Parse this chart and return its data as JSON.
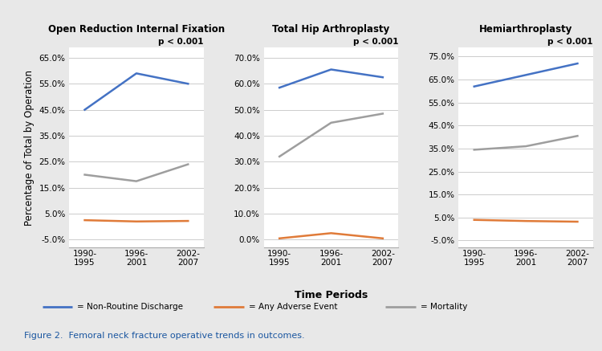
{
  "subplots": [
    {
      "title": "Open Reduction Internal Fixation",
      "pvalue": "p < 0.001",
      "yticks": [
        -5.0,
        5.0,
        15.0,
        25.0,
        35.0,
        45.0,
        55.0,
        65.0
      ],
      "ylim": [
        -8.0,
        69.0
      ],
      "non_routine": [
        45.0,
        59.0,
        55.0
      ],
      "adverse": [
        2.5,
        2.0,
        2.2
      ],
      "mortality": [
        20.0,
        17.5,
        24.0
      ]
    },
    {
      "title": "Total Hip Arthroplasty",
      "pvalue": "p < 0.001",
      "yticks": [
        0.0,
        10.0,
        20.0,
        30.0,
        40.0,
        50.0,
        60.0,
        70.0
      ],
      "ylim": [
        -3.0,
        74.0
      ],
      "non_routine": [
        58.5,
        65.5,
        62.5
      ],
      "adverse": [
        0.5,
        2.5,
        0.5
      ],
      "mortality": [
        32.0,
        45.0,
        48.5
      ]
    },
    {
      "title": "Hemiarthroplasty",
      "pvalue": "p < 0.001",
      "yticks": [
        -5.0,
        5.0,
        15.0,
        25.0,
        35.0,
        45.0,
        55.0,
        65.0,
        75.0
      ],
      "ylim": [
        -8.0,
        79.0
      ],
      "non_routine": [
        62.0,
        67.0,
        72.0
      ],
      "adverse": [
        4.0,
        3.5,
        3.2
      ],
      "mortality": [
        34.5,
        36.0,
        40.5
      ]
    }
  ],
  "xticklabels": [
    "1990-\n1995",
    "1996-\n2001",
    "2002-\n2007"
  ],
  "xlabel": "Time Periods",
  "ylabel": "Percentage of Total by Operation",
  "color_blue": "#4472C4",
  "color_orange": "#E07B39",
  "color_gray": "#9E9E9E",
  "legend_labels": [
    "= Non-Routine Discharge",
    "= Any Adverse Event",
    "= Mortality"
  ],
  "figure_caption": "Figure 2.  Femoral neck fracture operative trends in outcomes.",
  "plot_bg": "#FFFFFF",
  "fig_bg": "#E8E8E8"
}
